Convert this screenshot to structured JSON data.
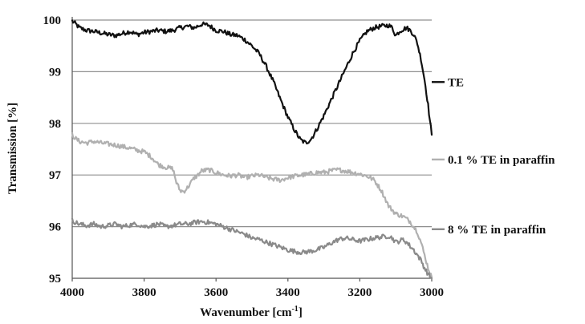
{
  "chart_data": {
    "type": "line",
    "xlabel": "Wavenumber [cm",
    "xlabel_sup": "-1",
    "xlabel_end": "]",
    "ylabel": "Transmission [%]",
    "xlim": [
      4000,
      3000
    ],
    "ylim": [
      95,
      100
    ],
    "x_ticks": [
      "4000",
      "3800",
      "3600",
      "3400",
      "3200",
      "3000"
    ],
    "y_ticks": [
      "95",
      "96",
      "97",
      "98",
      "99",
      "100"
    ],
    "grid": true,
    "legend_placement": "right",
    "series": [
      {
        "name": "TE",
        "color": "#111111",
        "points": [
          [
            4000,
            99.98
          ],
          [
            3990,
            99.92
          ],
          [
            3980,
            99.85
          ],
          [
            3960,
            99.8
          ],
          [
            3940,
            99.78
          ],
          [
            3920,
            99.75
          ],
          [
            3900,
            99.72
          ],
          [
            3880,
            99.7
          ],
          [
            3860,
            99.74
          ],
          [
            3840,
            99.78
          ],
          [
            3820,
            99.72
          ],
          [
            3800,
            99.76
          ],
          [
            3780,
            99.78
          ],
          [
            3760,
            99.8
          ],
          [
            3740,
            99.78
          ],
          [
            3720,
            99.8
          ],
          [
            3700,
            99.85
          ],
          [
            3680,
            99.88
          ],
          [
            3660,
            99.85
          ],
          [
            3640,
            99.92
          ],
          [
            3620,
            99.9
          ],
          [
            3600,
            99.8
          ],
          [
            3580,
            99.78
          ],
          [
            3560,
            99.72
          ],
          [
            3540,
            99.7
          ],
          [
            3520,
            99.62
          ],
          [
            3500,
            99.5
          ],
          [
            3480,
            99.35
          ],
          [
            3460,
            99.1
          ],
          [
            3440,
            98.8
          ],
          [
            3420,
            98.45
          ],
          [
            3400,
            98.12
          ],
          [
            3380,
            97.85
          ],
          [
            3365,
            97.68
          ],
          [
            3350,
            97.62
          ],
          [
            3335,
            97.7
          ],
          [
            3320,
            97.88
          ],
          [
            3300,
            98.15
          ],
          [
            3280,
            98.45
          ],
          [
            3260,
            98.75
          ],
          [
            3240,
            99.05
          ],
          [
            3220,
            99.35
          ],
          [
            3200,
            99.6
          ],
          [
            3180,
            99.78
          ],
          [
            3160,
            99.85
          ],
          [
            3140,
            99.88
          ],
          [
            3120,
            99.9
          ],
          [
            3110,
            99.85
          ],
          [
            3100,
            99.7
          ],
          [
            3090,
            99.78
          ],
          [
            3080,
            99.82
          ],
          [
            3070,
            99.85
          ],
          [
            3060,
            99.8
          ],
          [
            3050,
            99.72
          ],
          [
            3040,
            99.55
          ],
          [
            3030,
            99.25
          ],
          [
            3020,
            98.85
          ],
          [
            3010,
            98.35
          ],
          [
            3005,
            98.05
          ],
          [
            3000,
            97.78
          ]
        ]
      },
      {
        "name": "0.1 % TE in paraffin",
        "color": "#b0b0b0",
        "points": [
          [
            4000,
            97.78
          ],
          [
            3990,
            97.7
          ],
          [
            3980,
            97.65
          ],
          [
            3960,
            97.62
          ],
          [
            3940,
            97.65
          ],
          [
            3920,
            97.62
          ],
          [
            3900,
            97.6
          ],
          [
            3880,
            97.58
          ],
          [
            3860,
            97.55
          ],
          [
            3840,
            97.52
          ],
          [
            3820,
            97.48
          ],
          [
            3800,
            97.45
          ],
          [
            3780,
            97.35
          ],
          [
            3760,
            97.2
          ],
          [
            3740,
            97.15
          ],
          [
            3720,
            97.12
          ],
          [
            3710,
            96.85
          ],
          [
            3700,
            96.7
          ],
          [
            3690,
            96.68
          ],
          [
            3680,
            96.75
          ],
          [
            3670,
            96.85
          ],
          [
            3660,
            96.95
          ],
          [
            3650,
            97.0
          ],
          [
            3640,
            97.08
          ],
          [
            3620,
            97.1
          ],
          [
            3600,
            97.05
          ],
          [
            3580,
            97.0
          ],
          [
            3560,
            96.98
          ],
          [
            3540,
            97.0
          ],
          [
            3520,
            96.95
          ],
          [
            3500,
            96.98
          ],
          [
            3480,
            97.0
          ],
          [
            3460,
            96.95
          ],
          [
            3440,
            96.92
          ],
          [
            3420,
            96.9
          ],
          [
            3400,
            96.95
          ],
          [
            3380,
            96.98
          ],
          [
            3360,
            97.0
          ],
          [
            3340,
            97.02
          ],
          [
            3320,
            97.05
          ],
          [
            3300,
            97.05
          ],
          [
            3280,
            97.08
          ],
          [
            3260,
            97.1
          ],
          [
            3240,
            97.08
          ],
          [
            3220,
            97.05
          ],
          [
            3200,
            97.02
          ],
          [
            3180,
            96.98
          ],
          [
            3160,
            96.9
          ],
          [
            3140,
            96.7
          ],
          [
            3120,
            96.4
          ],
          [
            3100,
            96.25
          ],
          [
            3080,
            96.2
          ],
          [
            3060,
            96.1
          ],
          [
            3040,
            95.9
          ],
          [
            3030,
            95.7
          ],
          [
            3020,
            95.45
          ],
          [
            3010,
            95.2
          ],
          [
            3000,
            95.02
          ]
        ]
      },
      {
        "name": "8 % TE  in paraffin",
        "color": "#8a8a8a",
        "points": [
          [
            4000,
            96.12
          ],
          [
            3990,
            96.08
          ],
          [
            3980,
            96.05
          ],
          [
            3960,
            96.02
          ],
          [
            3940,
            96.05
          ],
          [
            3920,
            96.0
          ],
          [
            3900,
            96.02
          ],
          [
            3880,
            96.05
          ],
          [
            3860,
            96.0
          ],
          [
            3840,
            96.03
          ],
          [
            3820,
            96.05
          ],
          [
            3800,
            96.0
          ],
          [
            3780,
            96.02
          ],
          [
            3760,
            96.05
          ],
          [
            3740,
            96.0
          ],
          [
            3720,
            96.02
          ],
          [
            3700,
            96.05
          ],
          [
            3680,
            96.05
          ],
          [
            3660,
            96.08
          ],
          [
            3640,
            96.1
          ],
          [
            3620,
            96.08
          ],
          [
            3600,
            96.05
          ],
          [
            3580,
            96.0
          ],
          [
            3560,
            95.95
          ],
          [
            3540,
            95.9
          ],
          [
            3520,
            95.85
          ],
          [
            3500,
            95.78
          ],
          [
            3480,
            95.75
          ],
          [
            3460,
            95.7
          ],
          [
            3440,
            95.65
          ],
          [
            3420,
            95.6
          ],
          [
            3400,
            95.55
          ],
          [
            3380,
            95.52
          ],
          [
            3360,
            95.5
          ],
          [
            3340,
            95.52
          ],
          [
            3320,
            95.55
          ],
          [
            3300,
            95.6
          ],
          [
            3280,
            95.68
          ],
          [
            3260,
            95.75
          ],
          [
            3240,
            95.78
          ],
          [
            3220,
            95.75
          ],
          [
            3200,
            95.72
          ],
          [
            3180,
            95.75
          ],
          [
            3160,
            95.78
          ],
          [
            3140,
            95.8
          ],
          [
            3120,
            95.82
          ],
          [
            3110,
            95.78
          ],
          [
            3100,
            95.7
          ],
          [
            3090,
            95.72
          ],
          [
            3080,
            95.75
          ],
          [
            3070,
            95.7
          ],
          [
            3060,
            95.62
          ],
          [
            3050,
            95.55
          ],
          [
            3040,
            95.45
          ],
          [
            3030,
            95.35
          ],
          [
            3020,
            95.2
          ],
          [
            3010,
            95.08
          ],
          [
            3000,
            95.0
          ]
        ]
      }
    ]
  }
}
